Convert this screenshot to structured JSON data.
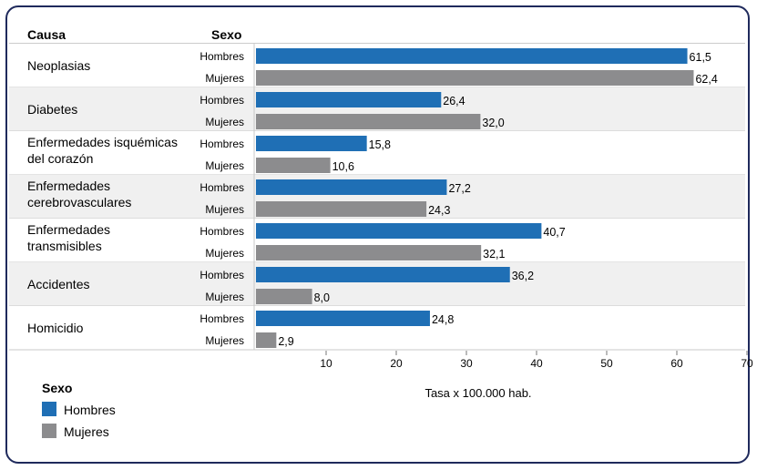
{
  "chart_data": {
    "type": "bar",
    "orientation": "horizontal",
    "header_cause": "Causa",
    "header_sex": "Sexo",
    "categories": [
      [
        "Neoplasias"
      ],
      [
        "Diabetes"
      ],
      [
        "Enfermedades isquémicas",
        "del corazón"
      ],
      [
        "Enfermedades",
        "cerebrovasculares"
      ],
      [
        "Enfermedades",
        "transmisibles"
      ],
      [
        "Accidentes"
      ],
      [
        "Homicidio"
      ]
    ],
    "series": [
      {
        "name": "Hombres",
        "color": "#1f6fb5",
        "values": [
          61.5,
          26.4,
          15.8,
          27.2,
          40.7,
          36.2,
          24.8
        ]
      },
      {
        "name": "Mujeres",
        "color": "#8c8c8e",
        "values": [
          62.4,
          32.0,
          10.6,
          24.3,
          32.1,
          8.0,
          2.9
        ]
      }
    ],
    "value_labels": {
      "Hombres": [
        "61,5",
        "26,4",
        "15,8",
        "27,2",
        "40,7",
        "36,2",
        "24,8"
      ],
      "Mujeres": [
        "62,4",
        "32,0",
        "10,6",
        "24,3",
        "32,1",
        "8,0",
        "2,9"
      ]
    },
    "xticks": [
      10,
      20,
      30,
      40,
      50,
      60,
      70
    ],
    "xlim": [
      0,
      70
    ],
    "xlabel": "Tasa x 100.000 hab.",
    "legend": {
      "title": "Sexo",
      "position": "bottom-left"
    },
    "row_shading": [
      "#ffffff",
      "#f0f0f0"
    ],
    "grid": false
  }
}
